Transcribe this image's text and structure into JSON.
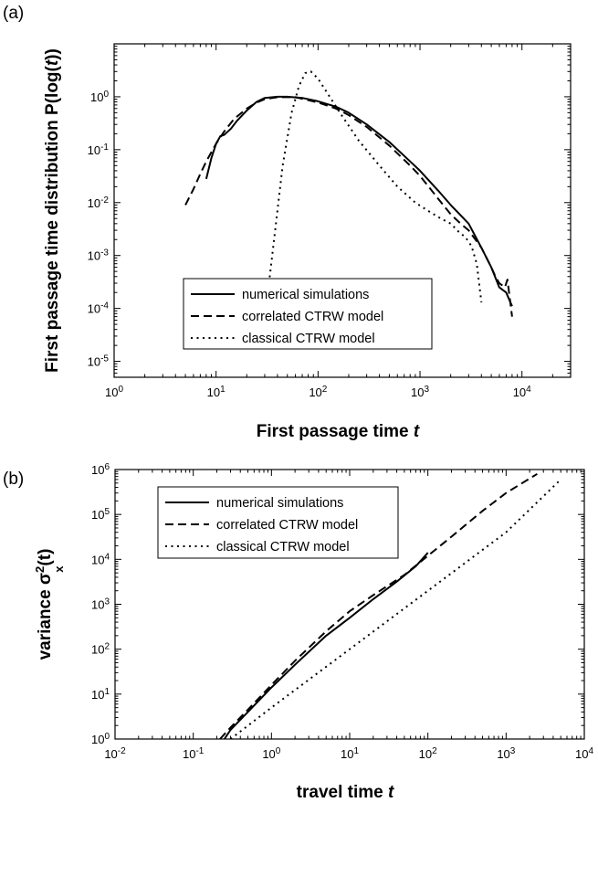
{
  "chart_data": [
    {
      "type": "line",
      "panel_label": "(a)",
      "xlabel": "First passage time",
      "xlabel_var": "t",
      "ylabel": "First passage time distribution P(log(",
      "ylabel_var": "t",
      "ylabel_end": "))",
      "xscale": "log",
      "yscale": "log",
      "xlim": [
        1,
        30000
      ],
      "ylim": [
        5e-06,
        10
      ],
      "x_ticks": [
        1,
        10,
        100,
        1000,
        10000
      ],
      "x_tick_exps": [
        "0",
        "1",
        "2",
        "3",
        "4"
      ],
      "y_ticks": [
        1e-05,
        0.0001,
        0.001,
        0.01,
        0.1,
        1
      ],
      "y_tick_exps": [
        "-5",
        "-4",
        "-3",
        "-2",
        "-1",
        "0"
      ],
      "tick_base": "10",
      "legend": {
        "placement": "bottom-center",
        "items": [
          "numerical simulations",
          "correlated CTRW model",
          "classical CTRW model"
        ]
      },
      "series": [
        {
          "name": "numerical simulations",
          "style": "solid",
          "x": [
            8,
            9,
            10,
            11,
            12,
            14,
            16,
            20,
            25,
            30,
            40,
            50,
            70,
            100,
            150,
            200,
            300,
            500,
            800,
            1000,
            1500,
            2000,
            3000,
            4000,
            5000,
            6000,
            7000,
            8000
          ],
          "y": [
            0.028,
            0.07,
            0.13,
            0.18,
            0.19,
            0.25,
            0.35,
            0.55,
            0.8,
            0.95,
            1.0,
            1.0,
            0.95,
            0.82,
            0.65,
            0.5,
            0.3,
            0.14,
            0.06,
            0.04,
            0.017,
            0.009,
            0.004,
            0.0014,
            0.0006,
            0.00025,
            0.0002,
            0.00011
          ]
        },
        {
          "name": "correlated CTRW model",
          "style": "dashed",
          "x": [
            5,
            6,
            7,
            8,
            10,
            12,
            15,
            20,
            25,
            30,
            40,
            60,
            100,
            150,
            200,
            300,
            500,
            800,
            1000,
            1500,
            2000,
            2500,
            3000,
            4000,
            5000,
            5500,
            6000,
            6800,
            7200,
            8000
          ],
          "y": [
            0.009,
            0.018,
            0.035,
            0.06,
            0.13,
            0.22,
            0.38,
            0.6,
            0.78,
            0.9,
            0.98,
            0.98,
            0.78,
            0.6,
            0.45,
            0.27,
            0.12,
            0.05,
            0.032,
            0.012,
            0.006,
            0.004,
            0.003,
            0.0014,
            0.0006,
            0.0004,
            0.0003,
            0.00025,
            0.00035,
            7e-05
          ]
        },
        {
          "name": "classical CTRW model",
          "style": "dotted",
          "x": [
            33,
            38,
            45,
            55,
            65,
            75,
            85,
            100,
            130,
            170,
            250,
            400,
            600,
            900,
            1200,
            1600,
            2000,
            2400,
            2800,
            3200,
            3600,
            4000
          ],
          "y": [
            0.0003,
            0.003,
            0.05,
            0.5,
            1.6,
            2.8,
            3.0,
            2.2,
            1.0,
            0.45,
            0.15,
            0.05,
            0.02,
            0.01,
            0.007,
            0.005,
            0.004,
            0.0028,
            0.0022,
            0.0015,
            0.0007,
            0.00013
          ]
        }
      ]
    },
    {
      "type": "line",
      "panel_label": "(b)",
      "xlabel": "travel time",
      "xlabel_var": "t",
      "ylabel": "variance σ",
      "ylabel_sub": "x",
      "ylabel_sup": "2",
      "ylabel_end": "(t)",
      "xscale": "log",
      "yscale": "log",
      "xlim": [
        0.01,
        10000
      ],
      "ylim": [
        1,
        1000000
      ],
      "x_ticks": [
        0.01,
        0.1,
        1,
        10,
        100,
        1000,
        10000
      ],
      "x_tick_exps": [
        "-2",
        "-1",
        "0",
        "1",
        "2",
        "3",
        "4"
      ],
      "y_ticks": [
        1,
        10,
        100,
        1000,
        10000,
        100000,
        1000000
      ],
      "y_tick_exps": [
        "0",
        "1",
        "2",
        "3",
        "4",
        "5",
        "6"
      ],
      "tick_base": "10",
      "legend": {
        "placement": "top-left",
        "items": [
          "numerical simulations",
          "correlated CTRW model",
          "classical CTRW model"
        ]
      },
      "series": [
        {
          "name": "numerical simulations",
          "style": "solid",
          "x": [
            0.25,
            0.3,
            0.5,
            1,
            2,
            5,
            10,
            20,
            40,
            70,
            100
          ],
          "y": [
            1,
            1.6,
            4,
            14,
            45,
            200,
            500,
            1300,
            3200,
            7000,
            14000
          ]
        },
        {
          "name": "correlated CTRW model",
          "style": "dashed",
          "x": [
            0.22,
            0.3,
            0.5,
            1,
            2,
            5,
            10,
            20,
            50,
            100,
            200,
            500,
            1000,
            2500
          ],
          "y": [
            1,
            1.8,
            4.5,
            16,
            55,
            250,
            700,
            1600,
            4500,
            12000,
            32000,
            120000,
            300000,
            800000
          ]
        },
        {
          "name": "classical CTRW model",
          "style": "dotted",
          "x": [
            0.3,
            1,
            10,
            100,
            1000,
            5000
          ],
          "y": [
            1,
            5,
            100,
            2000,
            40000,
            600000
          ]
        }
      ]
    }
  ]
}
